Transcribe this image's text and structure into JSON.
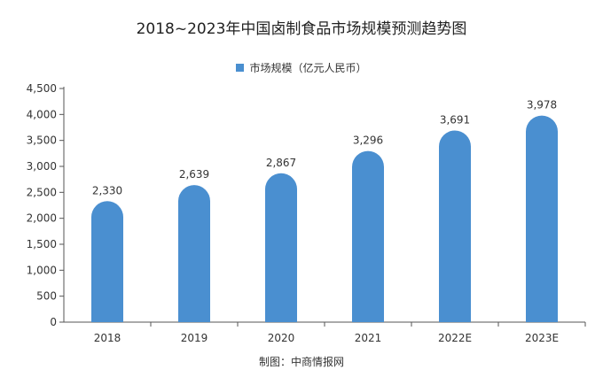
{
  "chart_data": {
    "type": "bar",
    "title": "2018~2023年中国卤制食品市场规模预测趋势图",
    "categories": [
      "2018",
      "2019",
      "2020",
      "2021",
      "2022E",
      "2023E"
    ],
    "series": [
      {
        "name": "市场规模（亿元人民币）",
        "values": [
          2330,
          2639,
          2867,
          3296,
          3691,
          3978
        ],
        "labels": [
          "2,330",
          "2,639",
          "2,867",
          "3,296",
          "3,691",
          "3,978"
        ],
        "color": "#4a8fd0"
      }
    ],
    "yticks": [
      "0",
      "500",
      "1,000",
      "1,500",
      "2,000",
      "2,500",
      "3,000",
      "3,500",
      "4,000",
      "4,500"
    ],
    "ylim": [
      0,
      4500
    ],
    "grid": false,
    "legend_position": "top-center",
    "bar_style": "rounded-top"
  },
  "source": "制图：中商情报网"
}
